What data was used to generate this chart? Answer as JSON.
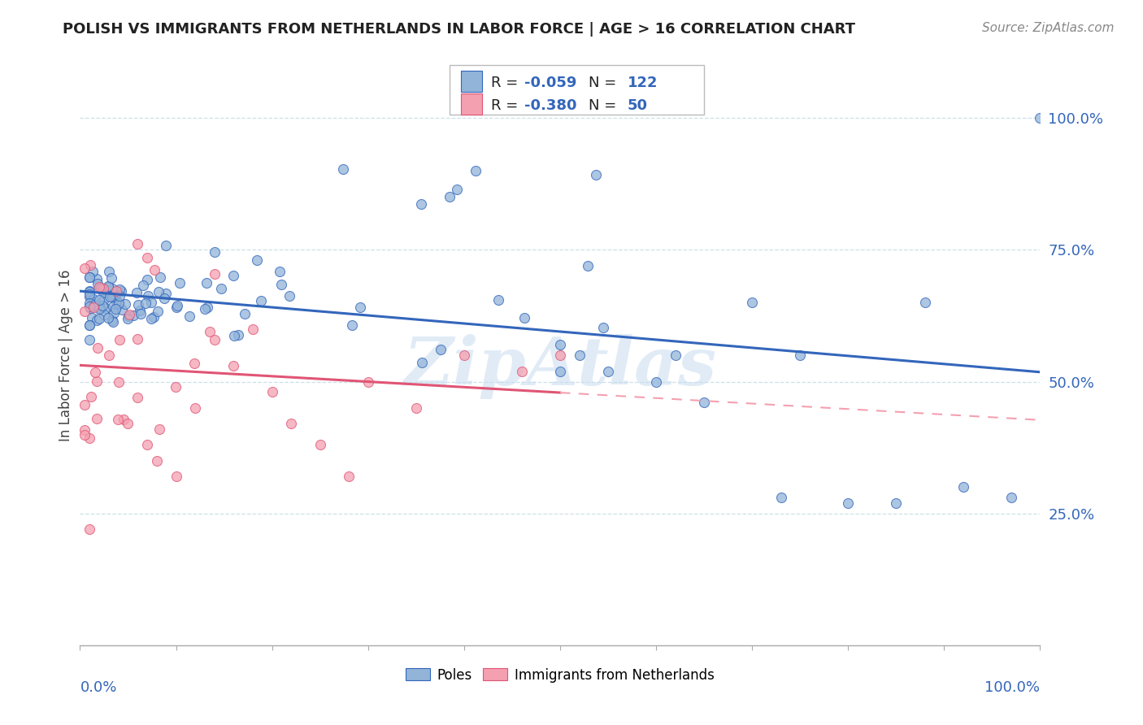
{
  "title": "POLISH VS IMMIGRANTS FROM NETHERLANDS IN LABOR FORCE | AGE > 16 CORRELATION CHART",
  "source": "Source: ZipAtlas.com",
  "ylabel": "In Labor Force | Age > 16",
  "right_ytick_vals": [
    1.0,
    0.75,
    0.5,
    0.25
  ],
  "right_ytick_labels": [
    "100.0%",
    "75.0%",
    "50.0%",
    "25.0%"
  ],
  "legend_bottom1": "Poles",
  "legend_bottom2": "Immigrants from Netherlands",
  "blue_color": "#92B4D9",
  "pink_color": "#F4A0B0",
  "blue_line_color": "#3366BB",
  "pink_line_color": "#E05575",
  "pink_line_color_dash": "#F4A0B0",
  "label_color": "#3366BB",
  "watermark": "ZipAtlas",
  "blue_R": -0.059,
  "blue_N": 122,
  "pink_R": -0.38,
  "pink_N": 50,
  "ylim_min": 0.0,
  "ylim_max": 1.1,
  "xlim_min": 0.0,
  "xlim_max": 1.0,
  "grid_color": "#AACCDD",
  "grid_alpha": 0.6,
  "title_fontsize": 13,
  "source_fontsize": 11,
  "tick_label_fontsize": 13,
  "legend_fontsize": 12,
  "ylabel_fontsize": 12
}
